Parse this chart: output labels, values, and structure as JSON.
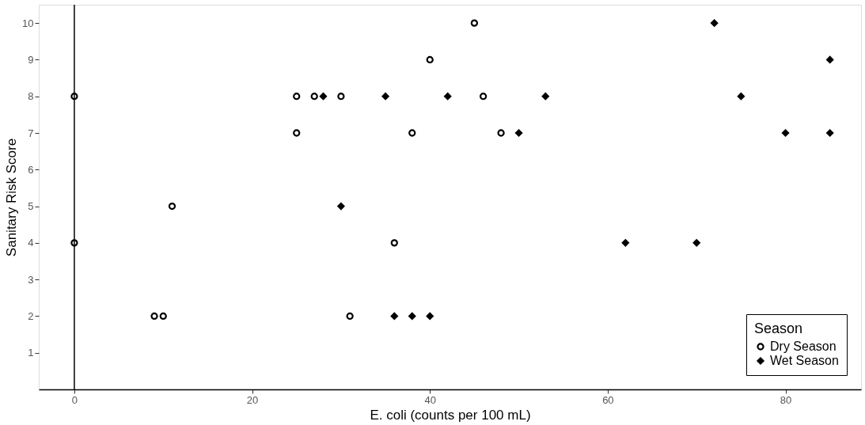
{
  "chart_data": {
    "type": "scatter",
    "xlabel": "E. coli (counts per 100 mL)",
    "ylabel": "Sanitary Risk Score",
    "legend_title": "Season",
    "legend": "bottom right",
    "grid": false,
    "xlim": [
      -4,
      88.5
    ],
    "xticks": [
      0,
      20,
      40,
      60,
      80
    ],
    "ylim": [
      0,
      10.5
    ],
    "yticks": [
      1,
      2,
      3,
      4,
      5,
      6,
      7,
      8,
      9,
      10
    ],
    "ref_lines": [
      {
        "axis": "x",
        "value": 0,
        "color": "#000000"
      }
    ],
    "series": [
      {
        "name": "Dry Season",
        "color": "#000000",
        "marker": "circle",
        "x": [
          0,
          0,
          25,
          27,
          30,
          25,
          45,
          40,
          38,
          46,
          48,
          11,
          36,
          9,
          10,
          31
        ],
        "values": [
          8,
          4,
          8,
          8,
          8,
          7,
          10,
          9,
          7,
          8,
          7,
          5,
          4,
          2,
          2,
          2
        ]
      },
      {
        "name": "Wet Season",
        "color": "#000000",
        "marker": "diamond",
        "x": [
          28,
          35,
          42,
          53,
          50,
          30,
          36,
          38,
          40,
          62,
          70,
          72,
          85,
          75,
          80,
          85
        ],
        "values": [
          8,
          8,
          8,
          8,
          7,
          5,
          2,
          2,
          2,
          4,
          4,
          10,
          9,
          8,
          7,
          7
        ]
      }
    ]
  }
}
